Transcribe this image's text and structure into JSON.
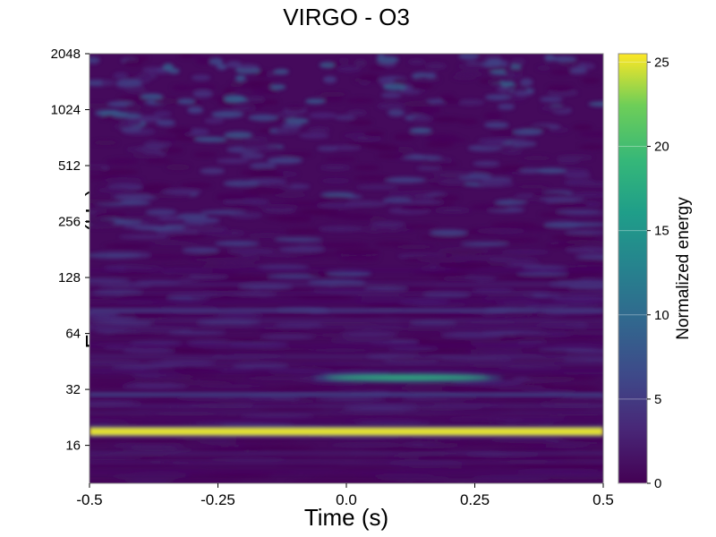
{
  "chart_data": {
    "type": "heatmap",
    "title": "VIRGO - O3",
    "xlabel": "Time (s)",
    "ylabel": "Frequency (Hz)",
    "xlim": [
      -0.5,
      0.5
    ],
    "ylim": [
      10,
      2048
    ],
    "yscale": "log2",
    "x_ticks": [
      -0.5,
      -0.25,
      0.0,
      0.25,
      0.5
    ],
    "x_tick_labels": [
      "-0.5",
      "-0.25",
      "0.0",
      "0.25",
      "0.5"
    ],
    "y_ticks": [
      16,
      32,
      64,
      128,
      256,
      512,
      1024,
      2048
    ],
    "y_tick_labels": [
      "16",
      "32",
      "64",
      "128",
      "256",
      "512",
      "1024",
      "2048"
    ],
    "colorbar": {
      "label": "Normalized energy",
      "range": [
        0,
        25.5
      ],
      "ticks": [
        0,
        5,
        10,
        15,
        20,
        25
      ],
      "tick_labels": [
        "0",
        "5",
        "10",
        "15",
        "20",
        "25"
      ],
      "colormap": "viridis"
    },
    "features": [
      {
        "kind": "horizontal_line",
        "freq": 19,
        "t_start": -0.5,
        "t_end": 0.5,
        "energy": 25
      },
      {
        "kind": "blob",
        "freq": 37,
        "t_center": 0.12,
        "t_width": 0.32,
        "energy": 18
      },
      {
        "kind": "horizontal_line",
        "freq": 30,
        "t_start": -0.5,
        "t_end": 0.5,
        "energy": 6
      },
      {
        "kind": "horizontal_line",
        "freq": 85,
        "t_start": -0.5,
        "t_end": 0.5,
        "energy": 5
      }
    ]
  },
  "colors": {
    "viridis_low": "#440154",
    "viridis_mid": "#21918c",
    "viridis_high": "#fde725"
  }
}
